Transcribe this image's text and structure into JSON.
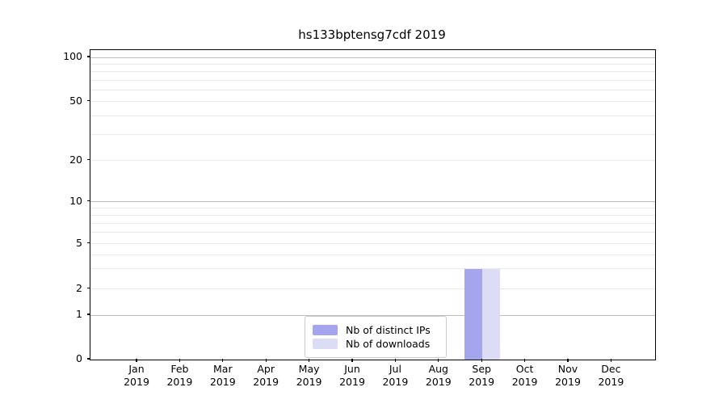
{
  "chart_data": {
    "type": "bar",
    "title": "hs133bptensg7cdf 2019",
    "categories": [
      "Jan 2019",
      "Feb 2019",
      "Mar 2019",
      "Apr 2019",
      "May 2019",
      "Jun 2019",
      "Jul 2019",
      "Aug 2019",
      "Sep 2019",
      "Oct 2019",
      "Nov 2019",
      "Dec 2019"
    ],
    "x_tick_line1": [
      "Jan",
      "Feb",
      "Mar",
      "Apr",
      "May",
      "Jun",
      "Jul",
      "Aug",
      "Sep",
      "Oct",
      "Nov",
      "Dec"
    ],
    "x_tick_line2": "2019",
    "series": [
      {
        "name": "Nb of distinct IPs",
        "color": "#a5a5ee",
        "values": [
          0,
          0,
          0,
          0,
          0,
          0,
          0,
          0,
          3,
          0,
          0,
          0
        ]
      },
      {
        "name": "Nb of downloads",
        "color": "#dcdcf7",
        "values": [
          0,
          0,
          0,
          0,
          0,
          0,
          0,
          0,
          3,
          0,
          0,
          0
        ]
      }
    ],
    "xlabel": "",
    "ylabel": "",
    "yscale": "symlog",
    "ylim": [
      0,
      115
    ],
    "yticks": [
      0,
      1,
      2,
      5,
      10,
      20,
      50,
      100
    ],
    "major_gridline_values": [
      1,
      10,
      100
    ],
    "minor_gridline_values": [
      2,
      3,
      4,
      5,
      6,
      7,
      8,
      9,
      20,
      30,
      40,
      50,
      60,
      70,
      80,
      90
    ],
    "grid": "horizontal",
    "legend_position": "lower center"
  },
  "legend": {
    "items": [
      {
        "label": "Nb of distinct IPs",
        "color": "#a5a5ee"
      },
      {
        "label": "Nb of downloads",
        "color": "#dcdcf7"
      }
    ]
  },
  "colors": {
    "bar_distinct_ips": "#a5a5ee",
    "bar_downloads": "#dcdcf7",
    "grid_major": "#bdbdbd",
    "grid_minor": "#e9e9e9",
    "spine": "#000000",
    "text": "#000000",
    "legend_border": "#cccccc",
    "background": "#ffffff"
  }
}
